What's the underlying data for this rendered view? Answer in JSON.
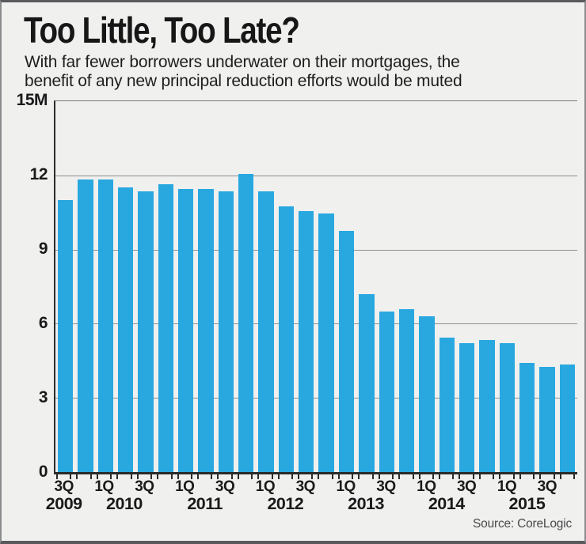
{
  "header": {
    "title": "Too Little, Too Late?",
    "subtitle_line1": "With far fewer borrowers underwater on their mortgages, the",
    "subtitle_line2": "benefit of any new principal reduction efforts would be muted"
  },
  "source": "Source: CoreLogic",
  "colors": {
    "background": "#F0F0EF",
    "bar": "#29A8E0",
    "grid": "#8F8F8F",
    "axis": "#2B2B2B",
    "text": "#1A1A1A",
    "source_text": "#4A4A4A"
  },
  "chart_data": {
    "type": "bar",
    "title": "Too Little, Too Late?",
    "subtitle": "With far fewer borrowers underwater on their mortgages, the benefit of any new principal reduction efforts would be muted",
    "unit_hint": "15M",
    "categories": [
      "3Q 2009",
      "4Q 2009",
      "1Q 2010",
      "2Q 2010",
      "3Q 2010",
      "4Q 2010",
      "1Q 2011",
      "2Q 2011",
      "3Q 2011",
      "4Q 2011",
      "1Q 2012",
      "2Q 2012",
      "3Q 2012",
      "4Q 2012",
      "1Q 2013",
      "2Q 2013",
      "3Q 2013",
      "4Q 2013",
      "1Q 2014",
      "2Q 2014",
      "3Q 2014",
      "4Q 2014",
      "1Q 2015",
      "2Q 2015",
      "3Q 2015",
      "4Q 2015"
    ],
    "values": [
      11.0,
      11.85,
      11.85,
      11.5,
      11.35,
      11.65,
      11.45,
      11.45,
      11.35,
      12.05,
      11.35,
      10.75,
      10.55,
      10.45,
      9.75,
      7.2,
      6.5,
      6.6,
      6.3,
      5.45,
      5.2,
      5.35,
      5.2,
      4.4,
      4.25,
      4.35
    ],
    "ylim": [
      0,
      15
    ],
    "yticks": [
      {
        "label": "15M",
        "value": 15
      },
      {
        "label": "12",
        "value": 12
      },
      {
        "label": "9",
        "value": 9
      },
      {
        "label": "6",
        "value": 6
      },
      {
        "label": "3",
        "value": 3
      },
      {
        "label": "0",
        "value": 0
      }
    ],
    "x_quarter_labels": [
      "3Q",
      "1Q",
      "3Q",
      "1Q",
      "3Q",
      "1Q",
      "3Q",
      "1Q",
      "3Q",
      "1Q",
      "3Q",
      "1Q",
      "3Q"
    ],
    "x_year_labels": [
      "2009",
      "2010",
      "2011",
      "2012",
      "2013",
      "2014",
      "2015"
    ],
    "grid": true,
    "legend": false,
    "source": "Source: CoreLogic"
  }
}
